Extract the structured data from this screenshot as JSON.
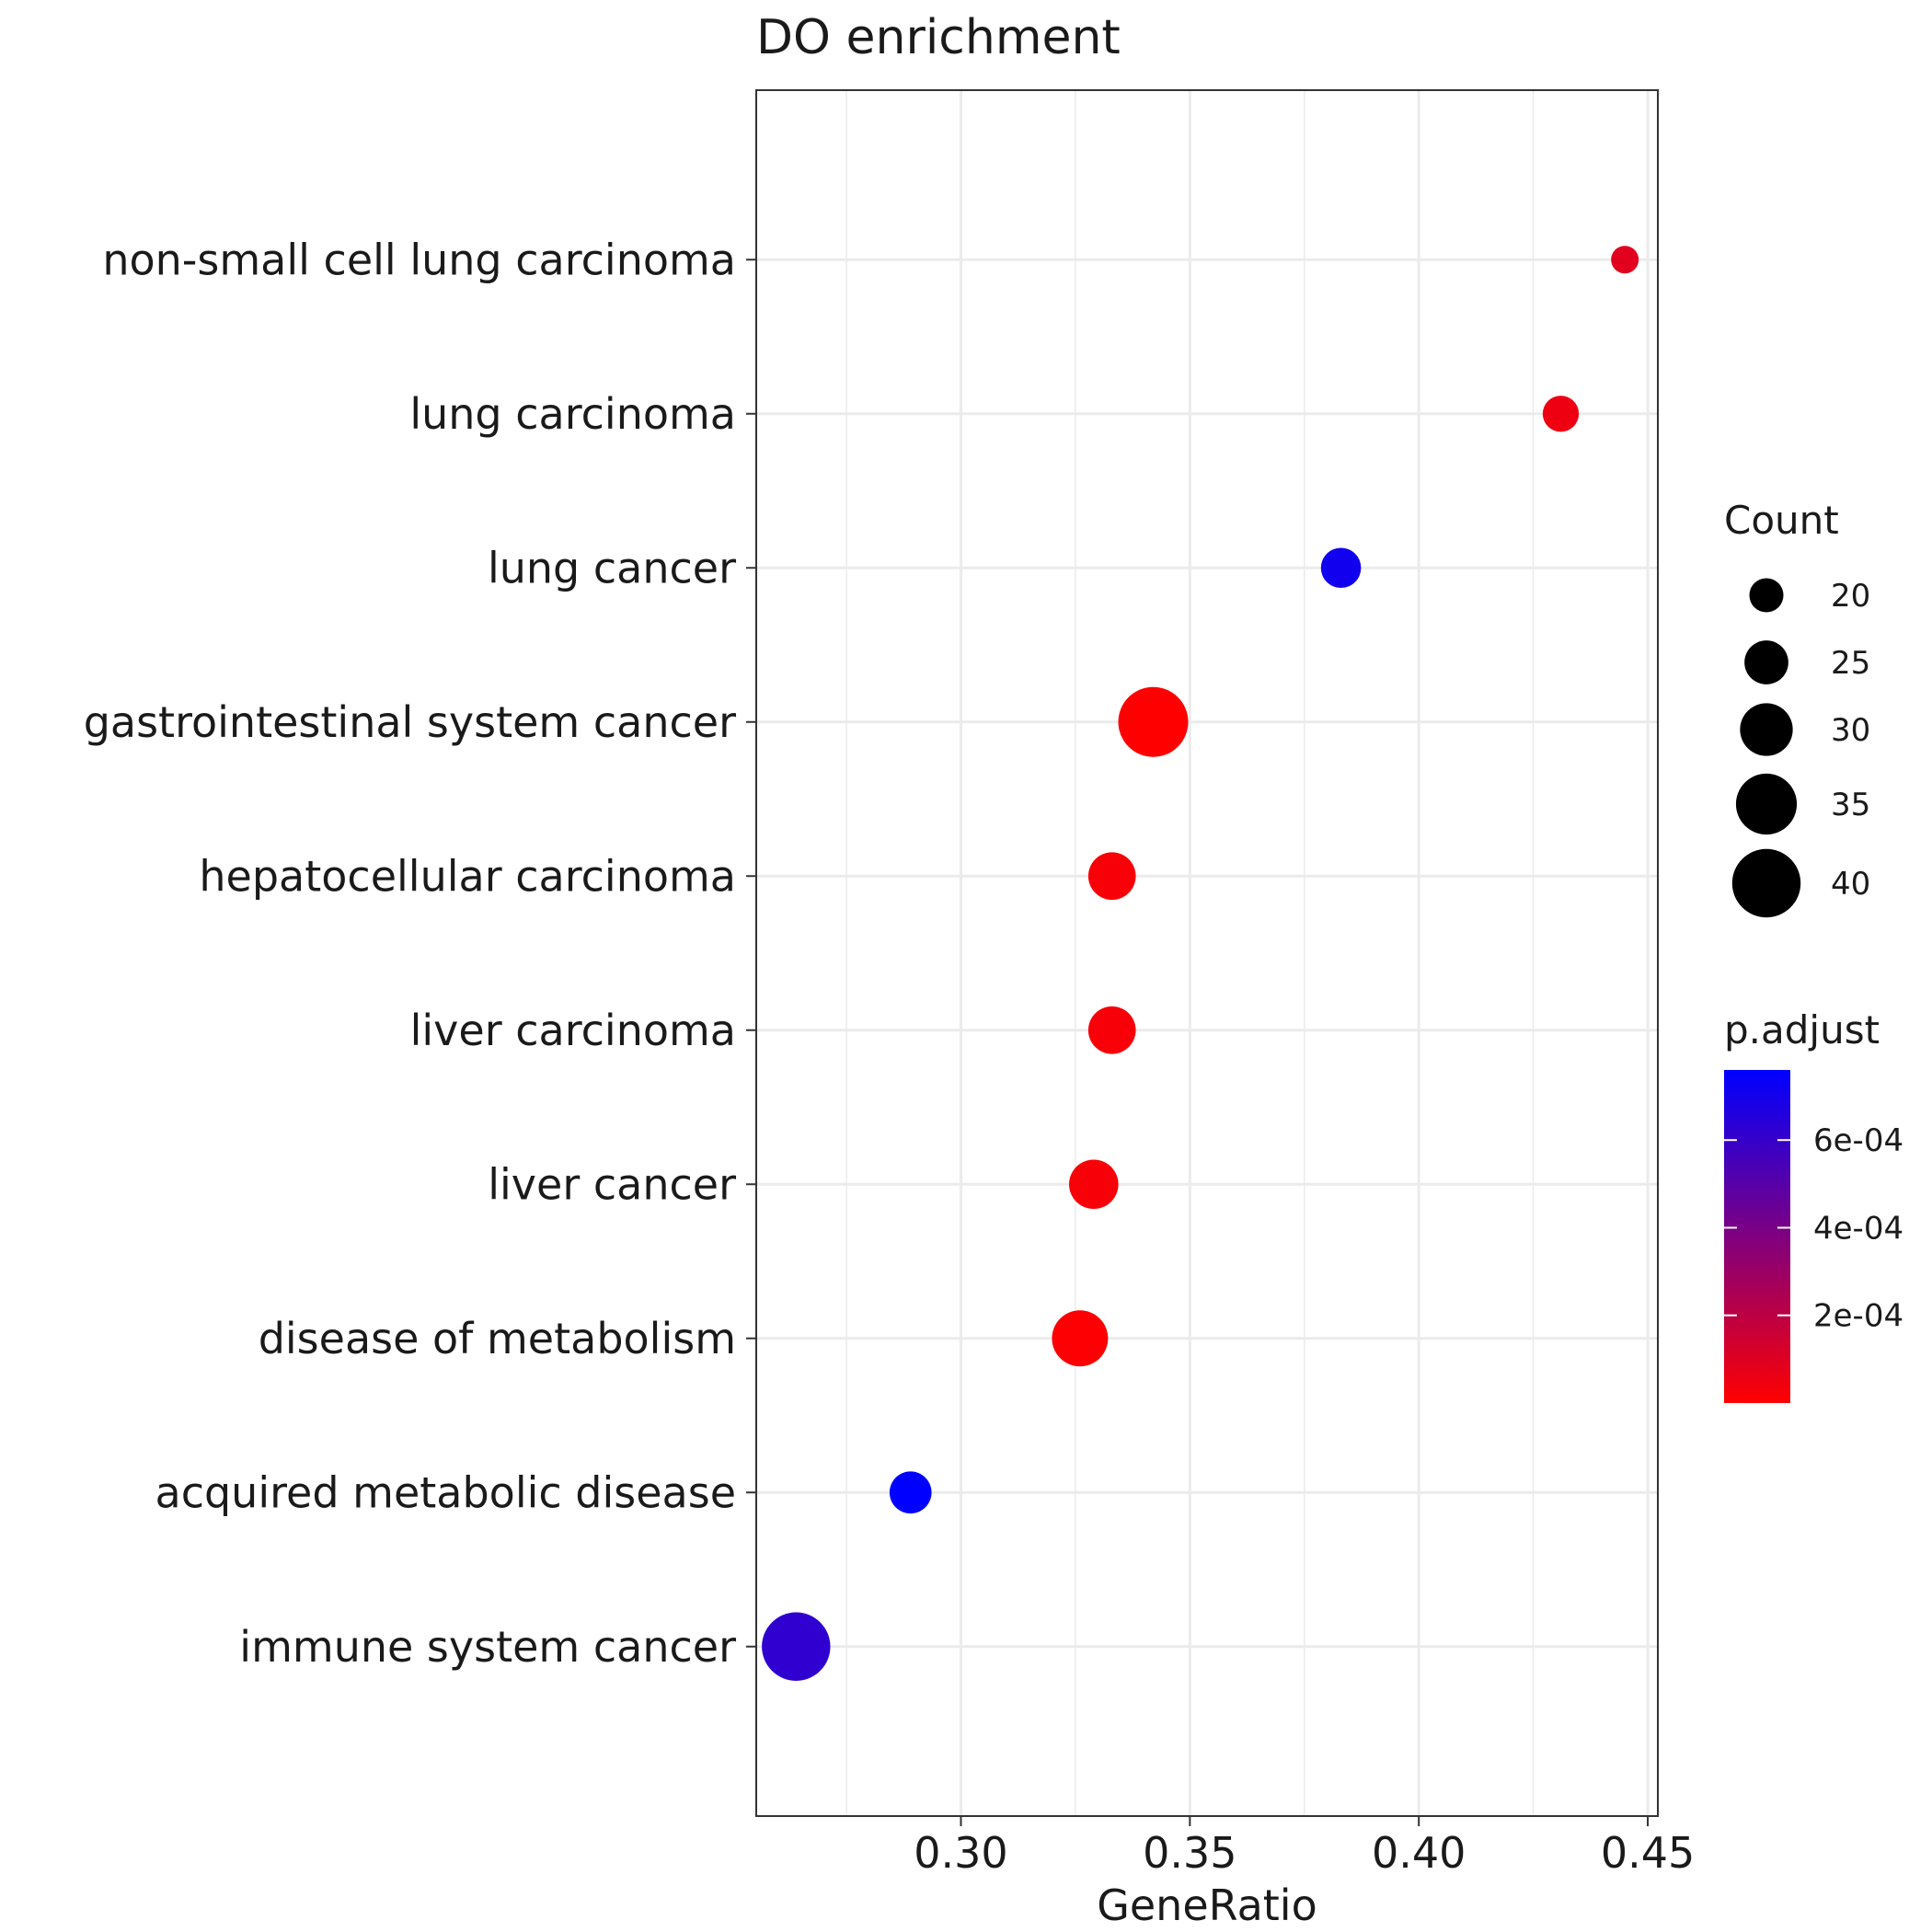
{
  "chart_data": {
    "type": "scatter",
    "title": "DO enrichment",
    "xlabel": "GeneRatio",
    "ylabel": "",
    "xlim": [
      0.2553,
      0.4522
    ],
    "xticks": [
      {
        "value": 0.3,
        "label": "0.30"
      },
      {
        "value": 0.35,
        "label": "0.35"
      },
      {
        "value": 0.4,
        "label": "0.40"
      },
      {
        "value": 0.45,
        "label": "0.45"
      }
    ],
    "grid": true,
    "categories": [
      "immune system cancer",
      "acquired metabolic disease",
      "disease of metabolism",
      "liver cancer",
      "liver carcinoma",
      "hepatocellular carcinoma",
      "gastrointestinal system cancer",
      "lung cancer",
      "lung carcinoma",
      "non-small cell lung carcinoma"
    ],
    "points": [
      {
        "term": "immune system cancer",
        "gene_ratio": 0.264,
        "count": 40,
        "p_adjust": 0.00062
      },
      {
        "term": "acquired metabolic disease",
        "gene_ratio": 0.289,
        "count": 24,
        "p_adjust": 0.00076
      },
      {
        "term": "disease of metabolism",
        "gene_ratio": 0.326,
        "count": 32,
        "p_adjust": 1e-05
      },
      {
        "term": "liver cancer",
        "gene_ratio": 0.329,
        "count": 28,
        "p_adjust": 2e-05
      },
      {
        "term": "liver carcinoma",
        "gene_ratio": 0.333,
        "count": 27,
        "p_adjust": 2e-05
      },
      {
        "term": "hepatocellular carcinoma",
        "gene_ratio": 0.333,
        "count": 27,
        "p_adjust": 2e-05
      },
      {
        "term": "gastrointestinal system cancer",
        "gene_ratio": 0.342,
        "count": 41,
        "p_adjust": 0.0
      },
      {
        "term": "lung cancer",
        "gene_ratio": 0.383,
        "count": 23,
        "p_adjust": 0.00071
      },
      {
        "term": "lung carcinoma",
        "gene_ratio": 0.431,
        "count": 21,
        "p_adjust": 5e-05
      },
      {
        "term": "non-small cell lung carcinoma",
        "gene_ratio": 0.445,
        "count": 17,
        "p_adjust": 9e-05
      }
    ],
    "size_legend": {
      "title": "Count",
      "entries": [
        {
          "value": 20,
          "label": "20"
        },
        {
          "value": 25,
          "label": "25"
        },
        {
          "value": 30,
          "label": "30"
        },
        {
          "value": 35,
          "label": "35"
        },
        {
          "value": 40,
          "label": "40"
        }
      ]
    },
    "color_legend": {
      "title": "p.adjust",
      "low_color": "#ff0000",
      "high_color": "#0000ff",
      "range": [
        0.0,
        0.00076
      ],
      "ticks": [
        {
          "value": 0.0002,
          "label": "2e-04"
        },
        {
          "value": 0.0004,
          "label": "4e-04"
        },
        {
          "value": 0.0006,
          "label": "6e-04"
        }
      ],
      "placement": "right"
    }
  }
}
